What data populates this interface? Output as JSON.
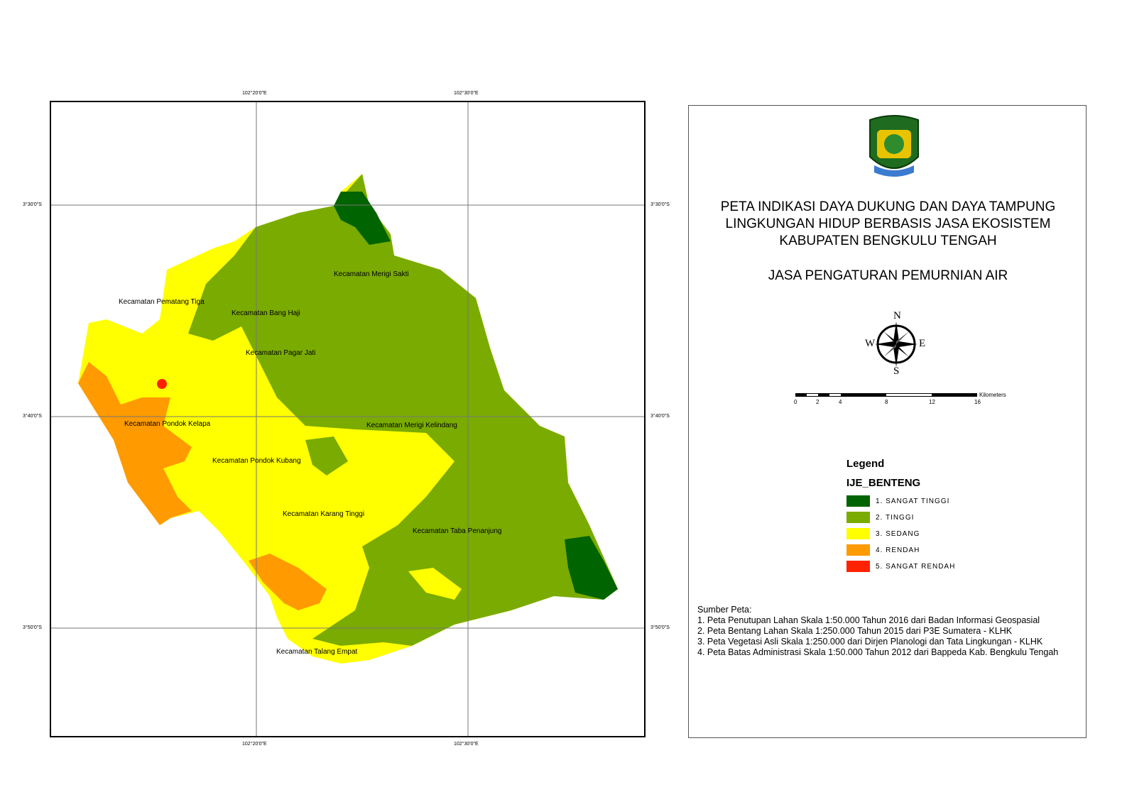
{
  "map": {
    "grid_labels": {
      "top": [
        "102°20'0\"E",
        "102°30'0\"E"
      ],
      "bottom": [
        "102°20'0\"E",
        "102°30'0\"E"
      ],
      "left": [
        "3°30'0\"S",
        "3°40'0\"S",
        "3°50'0\"S"
      ],
      "right": [
        "3°30'0\"S",
        "3°40'0\"S",
        "3°50'0\"S"
      ]
    },
    "districts": [
      "Kecamatan Merigi Sakti",
      "Kecamatan Pematang Tiga",
      "Kecamatan Bang Haji",
      "Kecamatan Pagar Jati",
      "Kecamatan Pondok Kelapa",
      "Kecamatan Merigi Kelindang",
      "Kecamatan Pondok Kubang",
      "Kecamatan Karang Tinggi",
      "Kecamatan Taba Penanjung",
      "Kecamatan Talang Empat"
    ]
  },
  "panel": {
    "title_lines": [
      "PETA INDIKASI DAYA DUKUNG DAN DAYA TAMPUNG",
      "LINGKUNGAN HIDUP BERBASIS JASA EKOSISTEM",
      "KABUPATEN BENGKULU TENGAH"
    ],
    "subtitle": "JASA PENGATURAN PEMURNIAN AIR",
    "compass": {
      "n": "N",
      "s": "S",
      "e": "E",
      "w": "W"
    },
    "scale": {
      "ticks": [
        "0",
        "2",
        "4",
        "8",
        "12",
        "16"
      ],
      "unit": "Kilometers"
    },
    "legend": {
      "heading": "Legend",
      "layer": "IJE_BENTENG",
      "items": [
        {
          "label": "1. SANGAT TINGGI",
          "color": "#006400"
        },
        {
          "label": "2. TINGGI",
          "color": "#7aab00"
        },
        {
          "label": "3. SEDANG",
          "color": "#ffff00"
        },
        {
          "label": "4. RENDAH",
          "color": "#ff9a00"
        },
        {
          "label": "5. SANGAT RENDAH",
          "color": "#ff2200"
        }
      ]
    },
    "sources": {
      "heading": "Sumber Peta:",
      "items": [
        "1. Peta Penutupan Lahan Skala 1:50.000 Tahun 2016 dari Badan Informasi Geospasial",
        "2. Peta Bentang Lahan Skala 1:250.000 Tahun 2015 dari  P3E Sumatera - KLHK",
        "3. Peta Vegetasi Asli Skala 1:250.000 dari Dirjen Planologi dan Tata Lingkungan - KLHK",
        "4. Peta Batas Administrasi Skala 1:50.000 Tahun 2012 dari Bappeda Kab. Bengkulu Tengah"
      ]
    }
  }
}
